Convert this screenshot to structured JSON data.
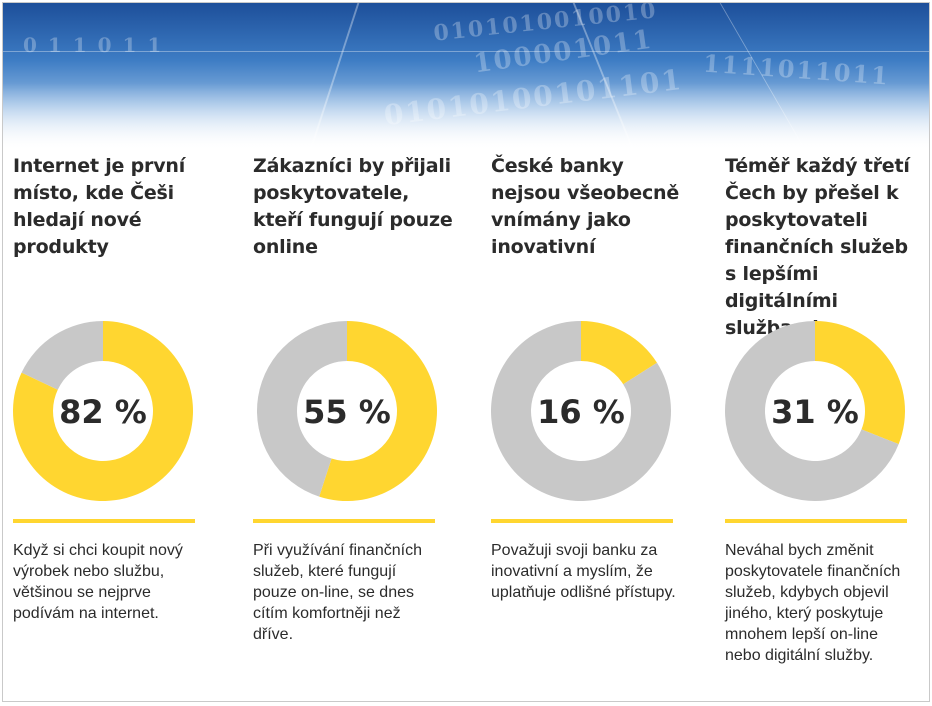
{
  "colors": {
    "accent": "#ffd630",
    "rest": "#c8c8c8",
    "text": "#2b2b2b"
  },
  "banner": {
    "binary_text": [
      "0101010010010",
      "100001011",
      "01010100101101",
      "0 1 1 0 1 1",
      "1111011011"
    ]
  },
  "chart_data": [
    {
      "type": "pie",
      "title": "Internet je první místo, kde Češi hledají nové produkty",
      "value": 82,
      "label": "82 %",
      "slices": [
        {
          "value": 82
        },
        {
          "value": 18
        }
      ],
      "note": "Když si chci koupit nový výrobek nebo službu, většinou se nejprve podívám na internet."
    },
    {
      "type": "pie",
      "title": "Zákazníci by přijali poskytovatele, kteří fungují pouze online",
      "value": 55,
      "label": "55 %",
      "slices": [
        {
          "value": 55
        },
        {
          "value": 45
        }
      ],
      "note": "Při využívání finančních služeb, které fungují pouze on-line, se dnes cítím komfortněji než dříve."
    },
    {
      "type": "pie",
      "title": "České banky nejsou všeobecně vnímány jako inovativní",
      "value": 16,
      "label": "16 %",
      "slices": [
        {
          "value": 16
        },
        {
          "value": 84
        }
      ],
      "note": "Považuji svoji banku za inovativní a myslím, že uplatňuje odlišné přístupy."
    },
    {
      "type": "pie",
      "title": "Téměř každý třetí Čech by přešel k poskytovateli finančních služeb s lepšími digitálními službami",
      "value": 31,
      "label": "31 %",
      "slices": [
        {
          "value": 31
        },
        {
          "value": 69
        }
      ],
      "note": "Neváhal bych změnit poskytovatele finančních služeb, kdybych objevil jiného, který poskytuje mnohem lepší on-line nebo digitální služby."
    }
  ]
}
